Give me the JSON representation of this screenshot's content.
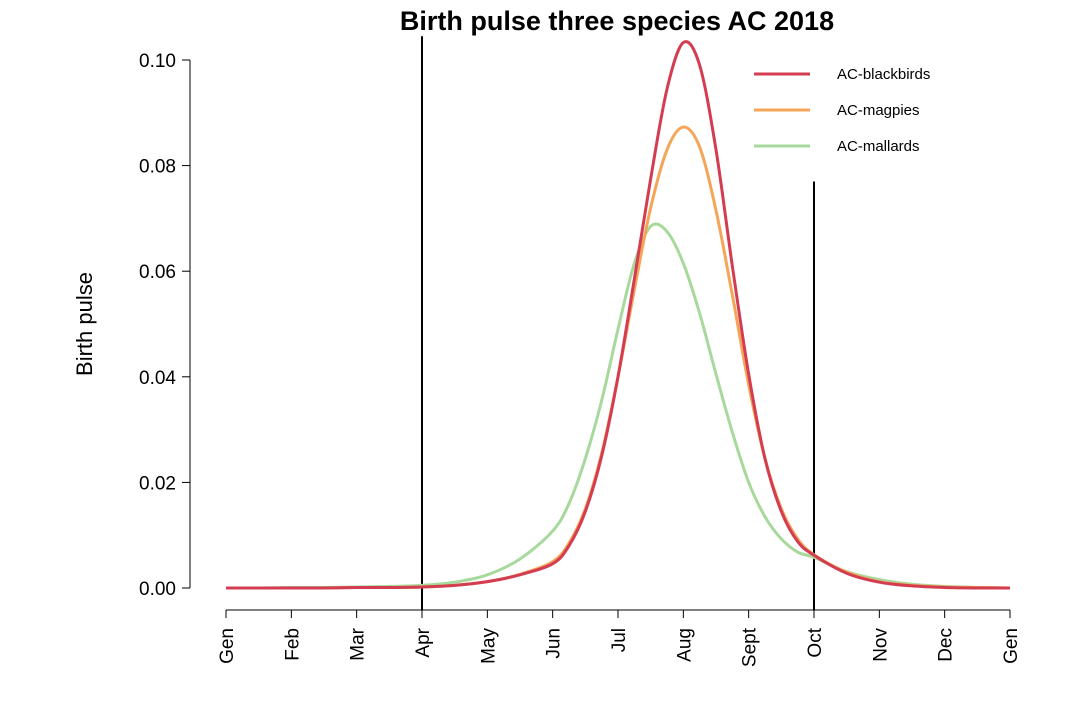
{
  "chart_data": {
    "type": "line",
    "title": "Birth pulse three species AC 2018",
    "ylabel": "Birth pulse",
    "xlabel": "",
    "xlim": [
      0,
      12
    ],
    "ylim": [
      0,
      0.1
    ],
    "y_ticks": [
      0.0,
      0.02,
      0.04,
      0.06,
      0.08,
      0.1
    ],
    "y_tick_labels": [
      "0.00",
      "0.02",
      "0.04",
      "0.06",
      "0.08",
      "0.10"
    ],
    "x_ticks": [
      0,
      1,
      2,
      3,
      4,
      5,
      6,
      7,
      8,
      9,
      10,
      11,
      12
    ],
    "x_tick_labels": [
      "Gen",
      "Feb",
      "Mar",
      "Apr",
      "May",
      "Jun",
      "Jul",
      "Aug",
      "Sept",
      "Oct",
      "Nov",
      "Dec",
      "Gen"
    ],
    "vertical_lines": [
      {
        "x": 3.0,
        "y_top": 0.1045
      },
      {
        "x": 9.0,
        "y_top": 0.077
      }
    ],
    "x": [
      0,
      0.5,
      1,
      1.5,
      2,
      2.5,
      3,
      3.5,
      4,
      4.5,
      5,
      5.25,
      5.5,
      5.75,
      6,
      6.25,
      6.5,
      6.75,
      7,
      7.25,
      7.5,
      7.75,
      8,
      8.25,
      8.5,
      8.75,
      9,
      9.5,
      10,
      10.5,
      11,
      11.5,
      12
    ],
    "series": [
      {
        "name": "AC-blackbirds",
        "color": "#d43d51",
        "values": [
          0.0,
          0.0,
          0.0,
          0.0,
          0.0001,
          0.0001,
          0.0002,
          0.0005,
          0.0012,
          0.0025,
          0.0046,
          0.008,
          0.0145,
          0.025,
          0.04,
          0.0585,
          0.0775,
          0.0945,
          0.1033,
          0.099,
          0.083,
          0.061,
          0.0405,
          0.0245,
          0.0145,
          0.0088,
          0.0062,
          0.0028,
          0.0011,
          0.0004,
          0.0001,
          0.0,
          0.0
        ]
      },
      {
        "name": "AC-magpies",
        "color": "#f5a557",
        "values": [
          0.0,
          0.0,
          0.0,
          0.0,
          0.0001,
          0.0001,
          0.0002,
          0.0005,
          0.0012,
          0.0026,
          0.005,
          0.0085,
          0.015,
          0.0255,
          0.04,
          0.0565,
          0.072,
          0.083,
          0.0873,
          0.0835,
          0.0715,
          0.0555,
          0.0385,
          0.0245,
          0.015,
          0.0093,
          0.0063,
          0.003,
          0.0012,
          0.0005,
          0.0002,
          0.0001,
          0.0
        ]
      },
      {
        "name": "AC-mallards",
        "color": "#a8d99c",
        "values": [
          0.0,
          0.0,
          0.0001,
          0.0001,
          0.0002,
          0.0003,
          0.0005,
          0.0011,
          0.0025,
          0.0055,
          0.0108,
          0.016,
          0.0245,
          0.0355,
          0.049,
          0.0615,
          0.0685,
          0.0675,
          0.0615,
          0.052,
          0.0405,
          0.0295,
          0.02,
          0.0135,
          0.0093,
          0.0068,
          0.0058,
          0.0031,
          0.0016,
          0.0007,
          0.0003,
          0.0001,
          0.0
        ]
      }
    ],
    "legend": {
      "position": "top-right"
    },
    "grid": false
  }
}
